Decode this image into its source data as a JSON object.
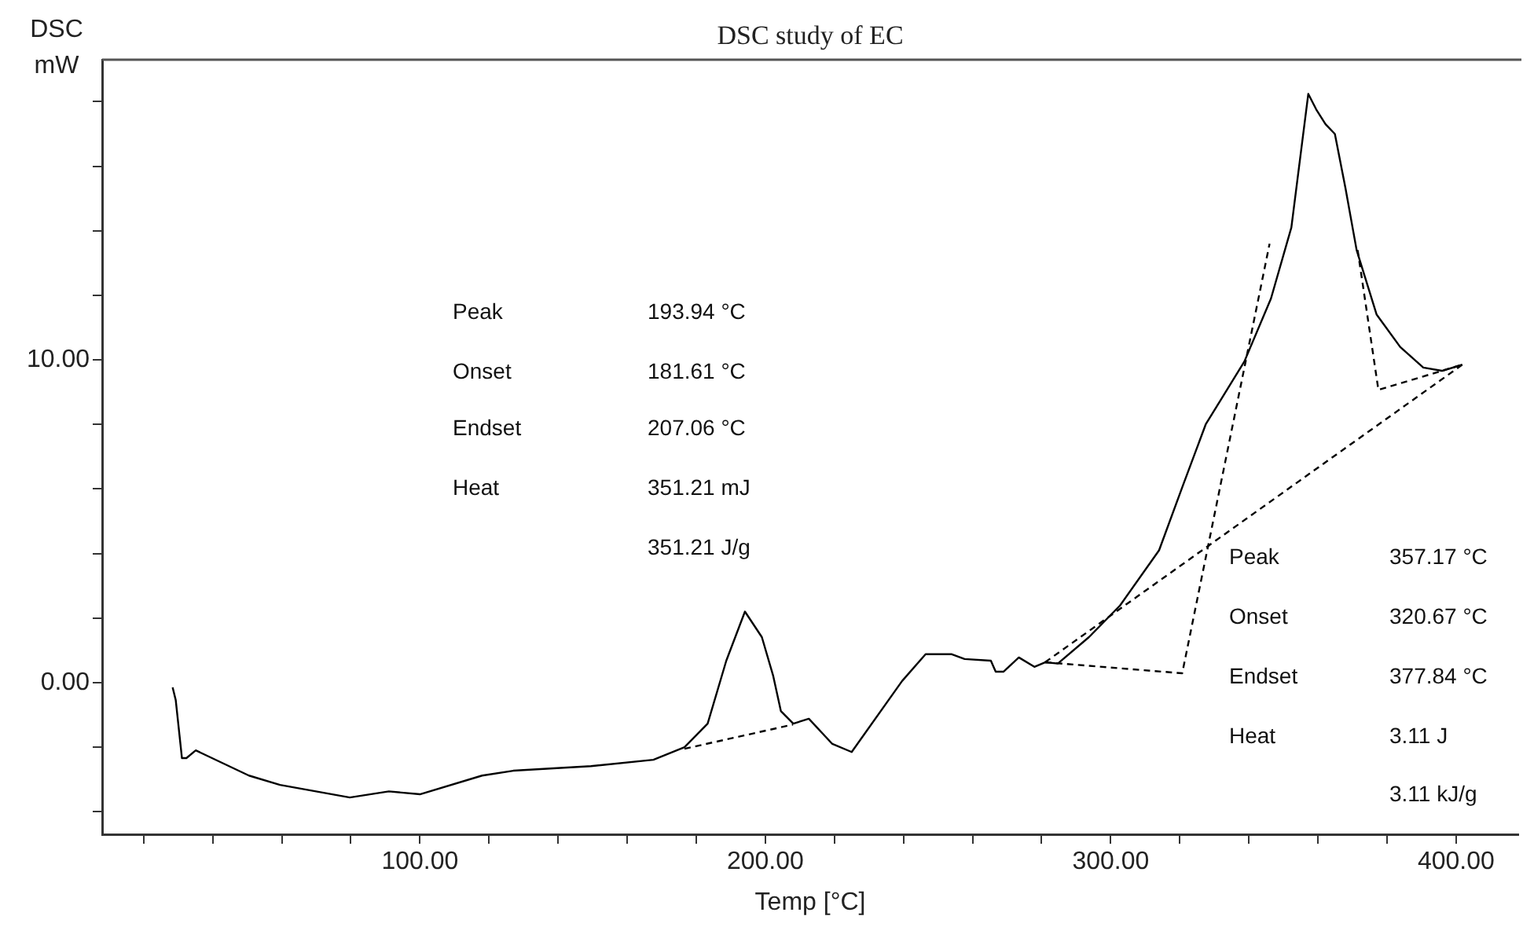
{
  "chart_data": {
    "type": "line",
    "title": "DSC study of EC",
    "xlabel": "Temp [°C]",
    "ylabel": "DSC mW",
    "xlim": [
      8,
      418
    ],
    "ylim": [
      -4.7,
      19.3
    ],
    "xticks": [
      {
        "value": 20,
        "label": null
      },
      {
        "value": 40,
        "label": null
      },
      {
        "value": 60,
        "label": null
      },
      {
        "value": 80,
        "label": null
      },
      {
        "value": 100,
        "label": "100.00"
      },
      {
        "value": 120,
        "label": null
      },
      {
        "value": 140,
        "label": null
      },
      {
        "value": 160,
        "label": null
      },
      {
        "value": 180,
        "label": null
      },
      {
        "value": 200,
        "label": "200.00"
      },
      {
        "value": 220,
        "label": null
      },
      {
        "value": 240,
        "label": null
      },
      {
        "value": 260,
        "label": null
      },
      {
        "value": 280,
        "label": null
      },
      {
        "value": 300,
        "label": "300.00"
      },
      {
        "value": 320,
        "label": null
      },
      {
        "value": 340,
        "label": null
      },
      {
        "value": 360,
        "label": null
      },
      {
        "value": 380,
        "label": null
      },
      {
        "value": 400,
        "label": "400.00"
      }
    ],
    "yticks": [
      {
        "value": -4,
        "label": null
      },
      {
        "value": -2,
        "label": null
      },
      {
        "value": 0,
        "label": "0.00"
      },
      {
        "value": 2,
        "label": null
      },
      {
        "value": 4,
        "label": null
      },
      {
        "value": 6,
        "label": null
      },
      {
        "value": 8,
        "label": null
      },
      {
        "value": 10,
        "label": "10.00"
      },
      {
        "value": 12,
        "label": null
      },
      {
        "value": 14,
        "label": null
      },
      {
        "value": 16,
        "label": null
      },
      {
        "value": 18,
        "label": null
      }
    ],
    "grid": false,
    "legend": false,
    "marker": "none",
    "series": [
      {
        "color": "#000000",
        "line_style": "solid",
        "x": [
          28.4,
          29.3,
          31.1,
          32.4,
          35.1,
          50.5,
          59.5,
          79.7,
          91,
          100,
          118,
          127,
          149.5,
          167.6,
          176.6,
          183.3,
          188.7,
          194.1,
          199,
          202.3,
          204.5,
          208.1,
          212.6,
          219.4,
          225,
          239.6,
          246.4,
          254,
          257.7,
          265.3,
          266.7,
          269,
          273.4,
          277.9,
          281,
          284.7,
          293.7,
          302.7,
          314,
          320.7,
          327.5,
          338.7,
          346.4,
          352.3,
          357.2,
          359.5,
          362.2,
          364.9,
          368,
          371.2,
          377,
          383.8,
          390.5,
          395.9,
          401.8
        ],
        "values": [
          -0.15,
          -0.54,
          -2.34,
          -2.34,
          -2.1,
          -2.88,
          -3.17,
          -3.56,
          -3.37,
          -3.46,
          -2.88,
          -2.73,
          -2.59,
          -2.39,
          -2.0,
          -1.27,
          0.68,
          2.2,
          1.41,
          0.2,
          -0.88,
          -1.27,
          -1.12,
          -1.9,
          -2.15,
          0.05,
          0.88,
          0.88,
          0.73,
          0.68,
          0.34,
          0.34,
          0.78,
          0.49,
          0.63,
          0.59,
          1.41,
          2.39,
          4.1,
          6.05,
          8.0,
          9.95,
          11.9,
          14.1,
          18.24,
          17.76,
          17.3,
          17.0,
          15.3,
          13.4,
          11.4,
          10.4,
          9.76,
          9.66,
          9.85
        ]
      },
      {
        "color": "#000000",
        "line_style": "dashed",
        "x": [
          176.6,
          208
        ],
        "values": [
          -2.05,
          -1.3
        ]
      },
      {
        "color": "#000000",
        "line_style": "dashed",
        "x": [
          281,
          401.8
        ],
        "values": [
          0.63,
          9.85
        ]
      },
      {
        "color": "#000000",
        "line_style": "dashed",
        "x": [
          281,
          320.7,
          346
        ],
        "values": [
          0.63,
          0.29,
          13.6
        ]
      },
      {
        "color": "#000000",
        "line_style": "dashed",
        "x": [
          371.5,
          377.5,
          401.8
        ],
        "values": [
          13.4,
          9.07,
          9.85
        ]
      }
    ],
    "annotations": [
      "Peak",
      "193.94 °C",
      "Onset",
      "181.61 °C",
      "Endset",
      "207.06 °C",
      "Heat",
      "351.21 mJ",
      "351.21 J/g",
      "Peak",
      "357.17 °C",
      "Onset",
      "320.67 °C",
      "Endset",
      "377.84 °C",
      "Heat",
      "3.11 J",
      "3.11 kJ/g"
    ]
  }
}
